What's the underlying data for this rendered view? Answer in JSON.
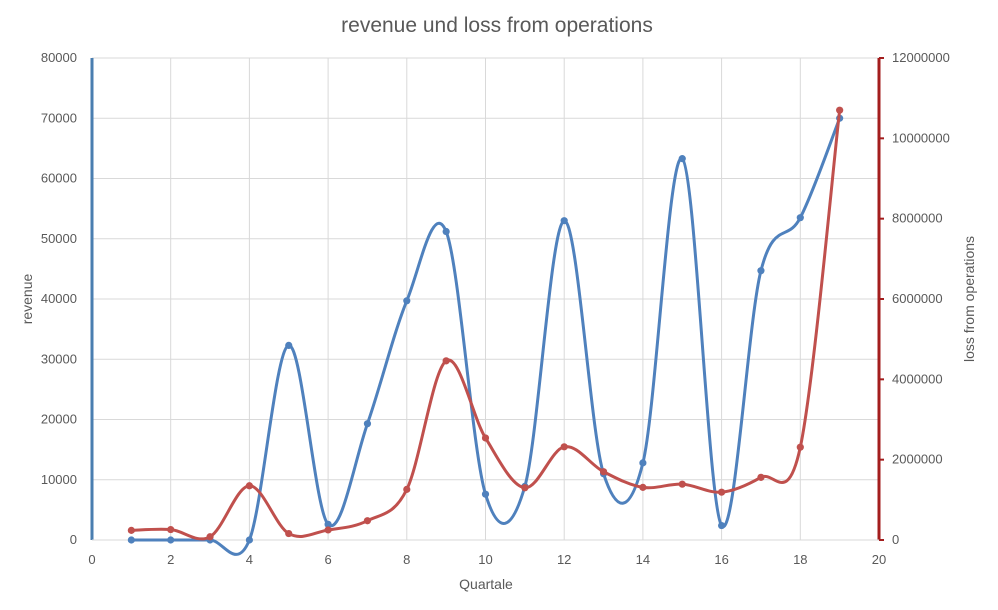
{
  "chart_data": {
    "type": "line",
    "title": "revenue und loss from operations",
    "xlabel": "Quartale",
    "ylabel": "revenue",
    "y2label": "loss from operations",
    "xlim": [
      0,
      20
    ],
    "ylim": [
      0,
      80000
    ],
    "y2lim": [
      0,
      12000000
    ],
    "xticks": [
      "0",
      "2",
      "4",
      "6",
      "8",
      "10",
      "12",
      "14",
      "16",
      "18",
      "20"
    ],
    "yticks": [
      "0",
      "10000",
      "20000",
      "30000",
      "40000",
      "50000",
      "60000",
      "70000",
      "80000"
    ],
    "y2ticks": [
      "0",
      "2000000",
      "4000000",
      "6000000",
      "8000000",
      "10000000",
      "12000000"
    ],
    "grid": true,
    "smooth": true,
    "series": [
      {
        "name": "revenue",
        "axis": "left",
        "color": "#4f81bd",
        "x": [
          1,
          2,
          3,
          4,
          5,
          6,
          7,
          8,
          9,
          10,
          11,
          12,
          13,
          14,
          15,
          16,
          17,
          18,
          19
        ],
        "values": [
          0,
          0,
          0,
          0,
          32300,
          2600,
          19300,
          39700,
          51200,
          7600,
          8900,
          53000,
          11000,
          12800,
          63300,
          2400,
          44700,
          53500,
          70000
        ]
      },
      {
        "name": "loss from operations",
        "axis": "right",
        "color": "#c0504d",
        "x": [
          1,
          2,
          3,
          4,
          5,
          6,
          7,
          8,
          9,
          10,
          11,
          12,
          13,
          14,
          15,
          16,
          17,
          18,
          19
        ],
        "values": [
          240000,
          260000,
          80000,
          1350000,
          160000,
          250000,
          480000,
          1260000,
          4460000,
          2540000,
          1300000,
          2320000,
          1700000,
          1310000,
          1390000,
          1190000,
          1560000,
          2310000,
          10700000
        ]
      }
    ],
    "axis_colors": {
      "left": "#4a7eb0",
      "right": "#a31d1d"
    }
  }
}
